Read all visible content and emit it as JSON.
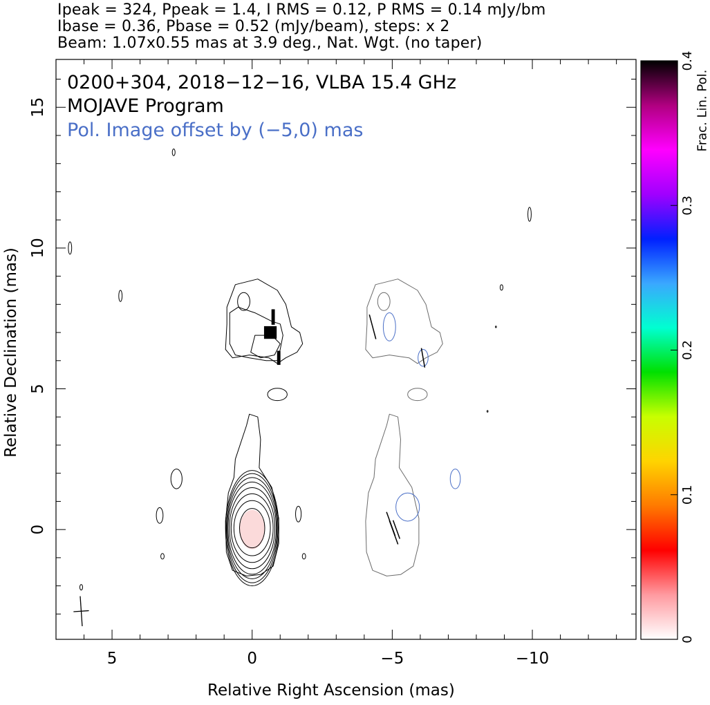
{
  "header": {
    "line1": "Ipeak = 324, Ppeak = 1.4, I RMS = 0.12, P RMS = 0.14 mJy/bm",
    "line2": "Ibase = 0.36, Pbase = 0.52 (mJy/beam), steps: x 2",
    "line3": "Beam: 1.07x0.55 mas at 3.9 deg., Nat. Wgt. (no taper)"
  },
  "chart_data": {
    "type": "contour",
    "title": "0200+304, 2018−12−16, VLBA 15.4 GHz",
    "subtitle": "MOJAVE Program",
    "annotation": "Pol. Image offset by (−5,0) mas",
    "xlabel": "Relative Right Ascension (mas)",
    "ylabel": "Relative Declination (mas)",
    "xlim": [
      7,
      -13.7
    ],
    "ylim": [
      -3.9,
      16.7
    ],
    "x_ticks": [
      5,
      0,
      -5,
      -10
    ],
    "x_tick_labels": [
      "5",
      "0",
      "−5",
      "−10"
    ],
    "y_ticks": [
      0,
      5,
      10,
      15
    ],
    "y_tick_labels": [
      "0",
      "5",
      "10",
      "15"
    ],
    "colorbar": {
      "label": "Frac. Lin. Pol.",
      "range": [
        0,
        0.4
      ],
      "ticks": [
        0,
        0.1,
        0.2,
        0.3,
        0.4
      ],
      "tick_labels": [
        "0",
        "0.1",
        "0.2",
        "0.3",
        "0.4"
      ],
      "colors": [
        "#ffffff",
        "#ff9aa0",
        "#ff0000",
        "#ff7a00",
        "#ffd400",
        "#c8ff00",
        "#00e000",
        "#00ffd0",
        "#3aa8ff",
        "#0020ff",
        "#a000ff",
        "#ff00ff",
        "#b00080",
        "#000000"
      ]
    },
    "beam": {
      "major_mas": 1.07,
      "minor_mas": 0.55,
      "pa_deg": 3.9,
      "center": [
        6.1,
        -2.9
      ]
    },
    "core_pol_fraction": 0.03,
    "stokes_i_contours": {
      "color": "#000000",
      "core": {
        "center": [
          0,
          0
        ],
        "levels": [
          {
            "a": 0.45,
            "b": 0.7
          },
          {
            "a": 0.65,
            "b": 0.98
          },
          {
            "a": 0.75,
            "b": 1.22
          },
          {
            "a": 0.81,
            "b": 1.44
          },
          {
            "a": 0.86,
            "b": 1.64
          },
          {
            "a": 0.89,
            "b": 1.8
          },
          {
            "a": 0.92,
            "b": 1.94
          },
          {
            "a": 0.95,
            "b": 2.05
          }
        ]
      },
      "outer": [
        [
          0.65,
          1.85
        ],
        [
          0.6,
          2.5
        ],
        [
          0.2,
          3.7
        ],
        [
          0.1,
          4.1
        ],
        [
          -0.2,
          4.0
        ],
        [
          -0.3,
          3.2
        ],
        [
          -0.25,
          2.2
        ],
        [
          -0.7,
          1.5
        ],
        [
          -0.95,
          0.4
        ],
        [
          -0.95,
          -0.5
        ],
        [
          -0.75,
          -1.3
        ],
        [
          -0.3,
          -1.6
        ],
        [
          0.2,
          -1.65
        ],
        [
          0.7,
          -1.45
        ],
        [
          0.92,
          -0.8
        ],
        [
          0.95,
          0.3
        ],
        [
          0.85,
          1.3
        ],
        [
          0.65,
          1.85
        ]
      ],
      "jet_outer": [
        [
          0.9,
          7.9
        ],
        [
          0.6,
          8.7
        ],
        [
          -0.2,
          8.9
        ],
        [
          -0.9,
          8.5
        ],
        [
          -1.2,
          8.0
        ],
        [
          -1.4,
          7.2
        ],
        [
          -1.7,
          7.0
        ],
        [
          -1.8,
          6.6
        ],
        [
          -1.6,
          6.3
        ],
        [
          -1.2,
          6.1
        ],
        [
          -0.9,
          5.9
        ],
        [
          -0.6,
          6.1
        ],
        [
          0.1,
          6.2
        ],
        [
          0.7,
          6.1
        ],
        [
          0.95,
          6.4
        ],
        [
          0.9,
          7.3
        ],
        [
          0.9,
          7.9
        ]
      ],
      "jet_inner": [
        [
          0.8,
          7.7
        ],
        [
          0.5,
          7.9
        ],
        [
          -0.1,
          7.7
        ],
        [
          -0.7,
          7.4
        ],
        [
          -1.0,
          7.3
        ],
        [
          -1.1,
          6.9
        ],
        [
          -1.0,
          6.4
        ],
        [
          -0.9,
          6.0
        ],
        [
          -0.5,
          6.0
        ],
        [
          0.1,
          6.1
        ],
        [
          0.6,
          6.2
        ],
        [
          0.8,
          6.6
        ],
        [
          0.8,
          7.3
        ],
        [
          0.8,
          7.7
        ]
      ],
      "jet_knot": [
        [
          -0.1,
          6.9
        ],
        [
          -0.7,
          6.9
        ],
        [
          -1.0,
          6.6
        ],
        [
          -0.8,
          6.2
        ],
        [
          -0.3,
          6.1
        ],
        [
          0.05,
          6.3
        ],
        [
          -0.1,
          6.9
        ]
      ],
      "small": [
        {
          "c": [
            0.3,
            8.1
          ],
          "rx": 0.22,
          "ry": 0.32
        },
        {
          "c": [
            2.7,
            1.8
          ],
          "rx": 0.2,
          "ry": 0.35
        },
        {
          "c": [
            3.3,
            0.5
          ],
          "rx": 0.12,
          "ry": 0.28
        },
        {
          "c": [
            3.2,
            -0.95
          ],
          "rx": 0.06,
          "ry": 0.1
        },
        {
          "c": [
            -1.65,
            0.55
          ],
          "rx": 0.1,
          "ry": 0.28
        },
        {
          "c": [
            -1.85,
            -0.95
          ],
          "rx": 0.06,
          "ry": 0.1
        },
        {
          "c": [
            2.8,
            13.4
          ],
          "rx": 0.05,
          "ry": 0.12
        },
        {
          "c": [
            4.7,
            8.3
          ],
          "rx": 0.06,
          "ry": 0.2
        },
        {
          "c": [
            6.5,
            10.0
          ],
          "rx": 0.06,
          "ry": 0.22
        },
        {
          "c": [
            -8.9,
            8.6
          ],
          "rx": 0.05,
          "ry": 0.1
        },
        {
          "c": [
            -9.9,
            11.2
          ],
          "rx": 0.06,
          "ry": 0.25
        },
        {
          "c": [
            6.1,
            -2.05
          ],
          "rx": 0.05,
          "ry": 0.1
        },
        {
          "c": [
            -0.9,
            4.8
          ],
          "rx": 0.35,
          "ry": 0.22
        },
        {
          "c": [
            -8.7,
            7.2
          ],
          "rx": 0.02,
          "ry": 0.03
        },
        {
          "c": [
            -8.4,
            4.2
          ],
          "rx": 0.02,
          "ry": 0.03
        }
      ]
    },
    "pol_contours": {
      "color": "#4a6fc7",
      "offset_x": -5,
      "shapes": [
        {
          "c": [
            -0.55,
            0.8
          ],
          "rx": 0.42,
          "ry": 0.5
        },
        {
          "c": [
            -4.9,
            7.2
          ],
          "rx": 0.22,
          "ry": 0.5
        },
        {
          "c": [
            -6.1,
            6.1
          ],
          "rx": 0.18,
          "ry": 0.3
        },
        {
          "c": [
            -2.25,
            1.8
          ],
          "rx": 0.18,
          "ry": 0.35
        }
      ]
    },
    "evpa_vectors": [
      {
        "x": -4.95,
        "y": 0.2,
        "angle_deg": 20,
        "len": 0.9
      },
      {
        "x": -5.05,
        "y": -0.1,
        "angle_deg": 20,
        "len": 0.9
      },
      {
        "x": -5.15,
        "y": 0.0,
        "angle_deg": 20,
        "len": 0.7
      },
      {
        "x": -4.3,
        "y": 7.2,
        "angle_deg": 15,
        "len": 0.9
      },
      {
        "x": -6.1,
        "y": 6.1,
        "angle_deg": 10,
        "len": 0.7
      }
    ],
    "fractional_pol_pixels": [
      {
        "x": -0.75,
        "y": 7.55,
        "w": 0.12,
        "h": 0.55
      },
      {
        "x": -0.65,
        "y": 7.0,
        "w": 0.45,
        "h": 0.45
      },
      {
        "x": -0.95,
        "y": 6.1,
        "w": 0.12,
        "h": 0.5
      }
    ]
  }
}
